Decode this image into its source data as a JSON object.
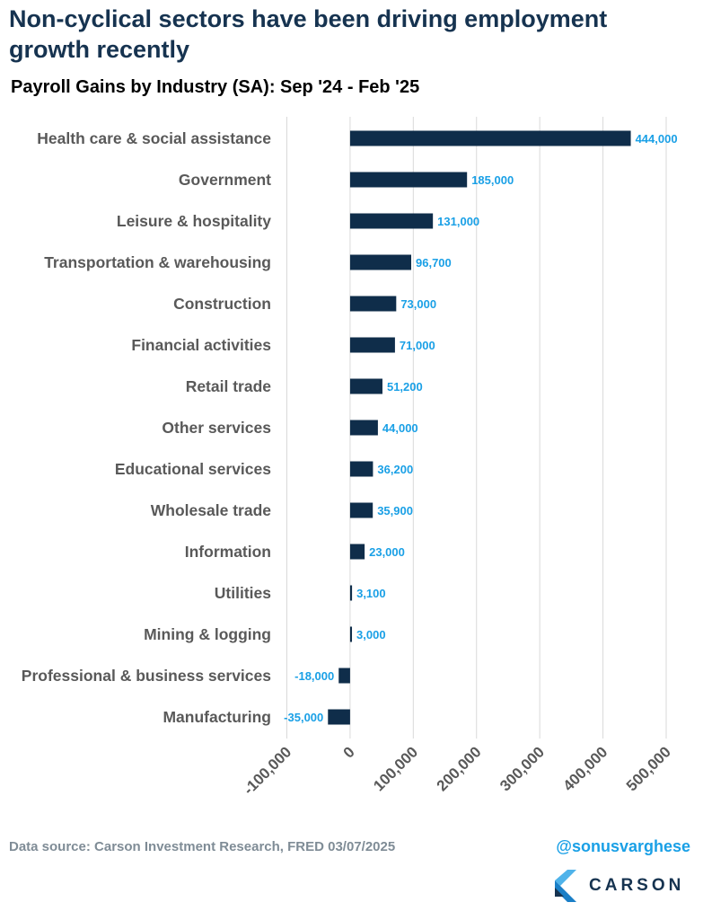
{
  "header": {
    "title": "Non-cyclical sectors have been driving employment growth recently",
    "subtitle": "Payroll Gains by Industry (SA): Sep '24 - Feb '25"
  },
  "footer": {
    "source": "Data source: Carson Investment Research, FRED   03/07/2025",
    "handle": "@sonusvarghese",
    "brand": "CARSON"
  },
  "colors": {
    "bar": "#0f2d4a",
    "value_label": "#1aa0e6",
    "title": "#163350",
    "grid": "#d9d9d9"
  },
  "chart_data": {
    "type": "bar",
    "orientation": "horizontal",
    "title": "Payroll Gains by Industry (SA): Sep '24 - Feb '25",
    "categories": [
      "Health care & social assistance",
      "Government",
      "Leisure & hospitality",
      "Transportation & warehousing",
      "Construction",
      "Financial activities",
      "Retail trade",
      "Other services",
      "Educational services",
      "Wholesale trade",
      "Information",
      "Utilities",
      "Mining & logging",
      "Professional & business services",
      "Manufacturing"
    ],
    "values": [
      444000,
      185000,
      131000,
      96700,
      73000,
      71000,
      51200,
      44000,
      36200,
      35900,
      23000,
      3100,
      3000,
      -18000,
      -35000
    ],
    "value_labels": [
      "444,000",
      "185,000",
      "131,000",
      "96,700",
      "73,000",
      "71,000",
      "51,200",
      "44,000",
      "36,200",
      "35,900",
      "23,000",
      "3,100",
      "3,000",
      "-18,000",
      "-35,000"
    ],
    "xlim": [
      -100000,
      500000
    ],
    "xticks": [
      -100000,
      0,
      100000,
      200000,
      300000,
      400000,
      500000
    ],
    "xtick_labels": [
      "-100,000",
      "0",
      "100,000",
      "200,000",
      "300,000",
      "400,000",
      "500,000"
    ],
    "grid": "vertical",
    "legend": "none"
  }
}
